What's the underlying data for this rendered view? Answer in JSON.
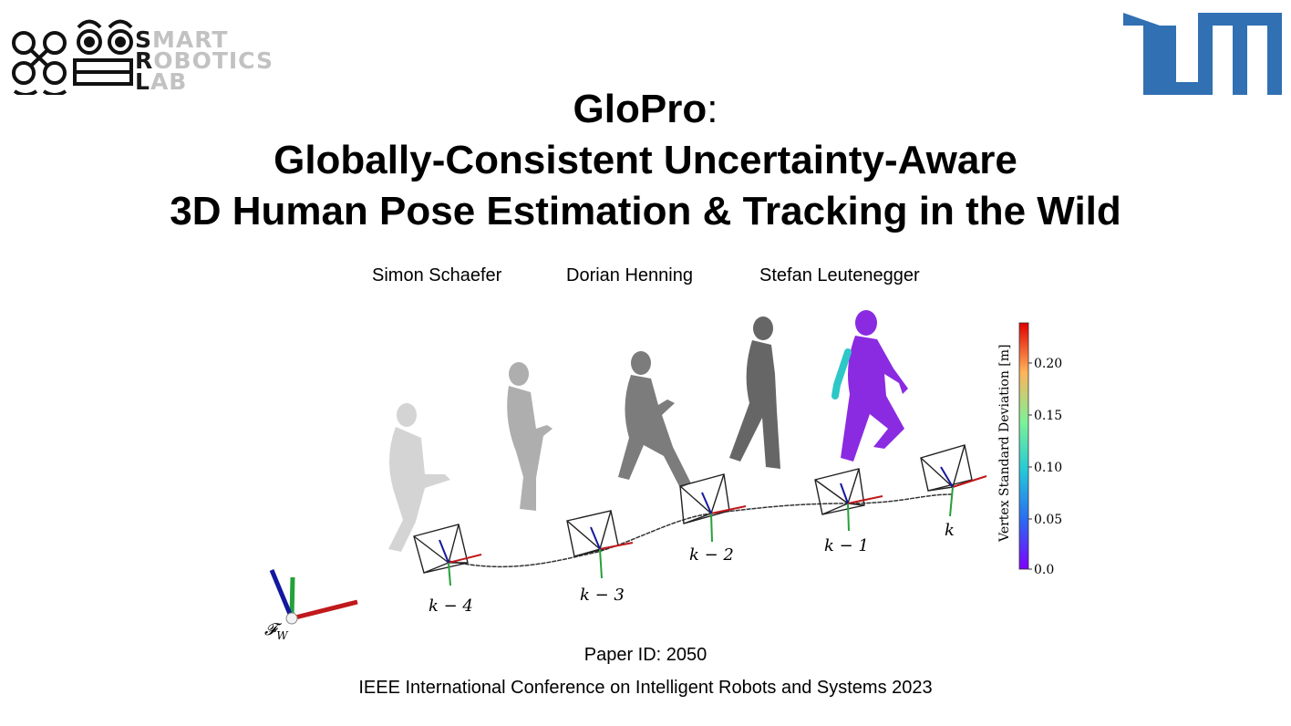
{
  "logos": {
    "srl": {
      "line1": {
        "cap": "S",
        "rest": "MART"
      },
      "line2": {
        "cap": "R",
        "rest": "OBOTICS"
      },
      "line3": {
        "cap": "L",
        "rest": "AB"
      }
    },
    "brand_blue": "#3070b3"
  },
  "title": {
    "line1_bold": "GloPro",
    "line1_rest": ":",
    "line2": "Globally-Consistent Uncertainty-Aware",
    "line3": "3D Human Pose Estimation & Tracking in the Wild"
  },
  "authors": [
    "Simon Schaefer",
    "Dorian Henning",
    "Stefan Leutenegger"
  ],
  "figure": {
    "world_frame_label": "𝓕",
    "world_frame_subscript": "W",
    "timesteps": [
      "k − 4",
      "k − 3",
      "k − 2",
      "k − 1",
      "k"
    ],
    "colorbar": {
      "label": "Vertex Standard Deviation [m]",
      "ticks": [
        "0.20",
        "0.15",
        "0.10",
        "0.05",
        "0.0"
      ],
      "colormap": "rainbow",
      "min": 0.0,
      "max": 0.24
    }
  },
  "footer": {
    "paper_id": "Paper ID: 2050",
    "conference": "IEEE International Conference on Intelligent Robots and Systems 2023"
  }
}
